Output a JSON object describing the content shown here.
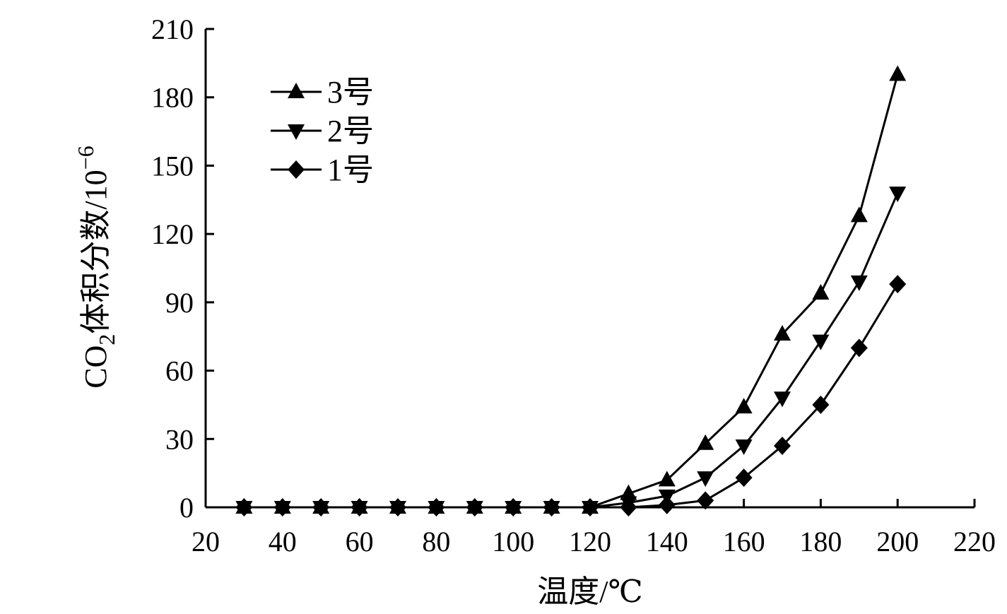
{
  "chart_data": {
    "type": "line",
    "xlabel": "温度/℃",
    "ylabel": {
      "prefix": "CO",
      "sub": "2",
      "main": "体积分数/10",
      "sup": "−6"
    },
    "xlim": [
      20,
      220
    ],
    "ylim": [
      0,
      210
    ],
    "xticks": [
      20,
      40,
      60,
      80,
      100,
      120,
      140,
      160,
      180,
      200,
      220
    ],
    "yticks": [
      0,
      30,
      60,
      90,
      120,
      150,
      180,
      210
    ],
    "x": [
      30,
      40,
      50,
      60,
      70,
      80,
      90,
      100,
      110,
      120,
      130,
      140,
      150,
      160,
      170,
      180,
      190,
      200
    ],
    "series": [
      {
        "name": "3号",
        "marker": "triangle-up",
        "values": [
          0,
          0,
          0,
          0,
          0,
          0,
          0,
          0,
          0,
          0,
          6,
          12,
          28,
          44,
          76,
          94,
          128,
          190
        ]
      },
      {
        "name": "2号",
        "marker": "triangle-down",
        "values": [
          0,
          0,
          0,
          0,
          0,
          0,
          0,
          0,
          0,
          0,
          2,
          5,
          13,
          27,
          48,
          73,
          99,
          138
        ]
      },
      {
        "name": "1号",
        "marker": "diamond",
        "values": [
          0,
          0,
          0,
          0,
          0,
          0,
          0,
          0,
          0,
          0,
          0,
          1,
          3,
          13,
          27,
          45,
          70,
          98
        ]
      }
    ],
    "legend": "top-left",
    "grid": false,
    "color": "#000000"
  }
}
